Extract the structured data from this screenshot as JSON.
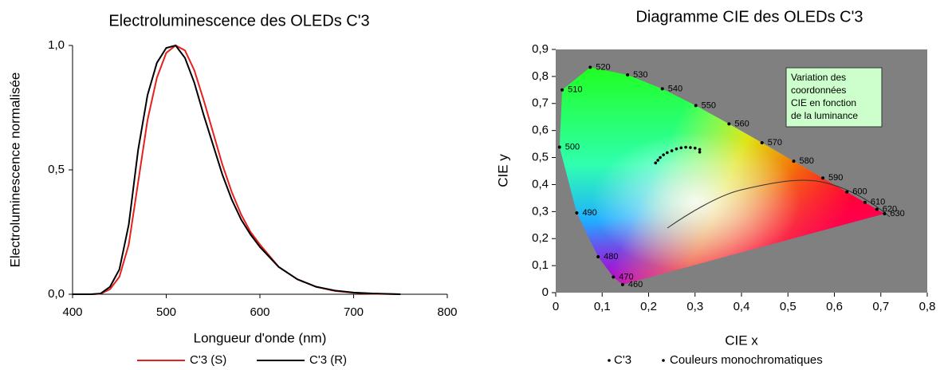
{
  "chart_data": [
    {
      "type": "line",
      "title": "Electroluminescence des OLEDs C'3",
      "x_label": "Longueur d'onde (nm)",
      "y_label": "Electroluminescence normalisée",
      "x": [
        400,
        420,
        430,
        440,
        450,
        460,
        470,
        480,
        490,
        500,
        510,
        520,
        530,
        540,
        550,
        560,
        570,
        580,
        590,
        600,
        620,
        640,
        660,
        680,
        700,
        720,
        750
      ],
      "series": [
        {
          "name": "C'3 (S)",
          "color": "#e8201c",
          "values": [
            0,
            0,
            0.002,
            0.02,
            0.07,
            0.2,
            0.45,
            0.7,
            0.87,
            0.97,
            1.0,
            0.98,
            0.9,
            0.78,
            0.65,
            0.52,
            0.41,
            0.32,
            0.25,
            0.2,
            0.11,
            0.06,
            0.03,
            0.013,
            0.006,
            0.002,
            0
          ]
        },
        {
          "name": "C'3 (R)",
          "color": "#000000",
          "values": [
            0,
            0,
            0.003,
            0.03,
            0.1,
            0.28,
            0.58,
            0.8,
            0.93,
            0.99,
            1.0,
            0.95,
            0.85,
            0.72,
            0.6,
            0.48,
            0.38,
            0.3,
            0.24,
            0.19,
            0.11,
            0.06,
            0.03,
            0.015,
            0.007,
            0.003,
            0
          ]
        }
      ],
      "xlim": [
        400,
        800
      ],
      "xticks": [
        400,
        500,
        600,
        700,
        800
      ],
      "ylim": [
        0,
        1
      ],
      "yticks": [
        {
          "value": 0,
          "label": "0,0"
        },
        {
          "value": 0.5,
          "label": "0,5"
        },
        {
          "value": 1,
          "label": "1,0"
        }
      ],
      "grid": false
    },
    {
      "type": "scatter",
      "title": "Diagramme CIE des OLEDs C'3",
      "x_label": "CIE x",
      "y_label": "CIE y",
      "annotation": [
        "Variation des",
        "coordonnées",
        "CIE en fonction",
        "de la luminance"
      ],
      "background": "#808080",
      "series": [
        {
          "name": "C'3",
          "color": "#000000",
          "x": [
            0.215,
            0.22,
            0.225,
            0.232,
            0.24,
            0.25,
            0.26,
            0.27,
            0.28,
            0.29,
            0.3,
            0.31,
            0.31
          ],
          "values": [
            0.48,
            0.49,
            0.5,
            0.51,
            0.518,
            0.525,
            0.532,
            0.536,
            0.538,
            0.537,
            0.535,
            0.53,
            0.52
          ]
        },
        {
          "name": "Couleurs monochromatiques",
          "color": "#000000",
          "x": [
            0.144,
            0.1241,
            0.0913,
            0.0454,
            0.0082,
            0.0139,
            0.0743,
            0.1547,
            0.2296,
            0.3016,
            0.3731,
            0.4441,
            0.5125,
            0.5752,
            0.627,
            0.6658,
            0.6915,
            0.7079
          ],
          "values": [
            0.0297,
            0.0578,
            0.1327,
            0.295,
            0.5384,
            0.7502,
            0.8338,
            0.8059,
            0.7543,
            0.6923,
            0.6245,
            0.5547,
            0.4866,
            0.4242,
            0.3725,
            0.334,
            0.3083,
            0.292
          ],
          "labels": [
            "460",
            "470",
            "480",
            "490",
            "500",
            "510",
            "520",
            "530",
            "540",
            "550",
            "560",
            "570",
            "580",
            "590",
            "600",
            "610",
            "620",
            "630"
          ]
        }
      ],
      "xlim": [
        0,
        0.8
      ],
      "xticks": [
        0,
        {
          "value": 0.1,
          "label": "0,1"
        },
        {
          "value": 0.2,
          "label": "0,2"
        },
        {
          "value": 0.3,
          "label": "0,3"
        },
        {
          "value": 0.4,
          "label": "0,4"
        },
        {
          "value": 0.5,
          "label": "0,5"
        },
        {
          "value": 0.6,
          "label": "0,6"
        },
        {
          "value": 0.7,
          "label": "0,7"
        },
        {
          "value": 0.8,
          "label": "0,8"
        }
      ],
      "ylim": [
        0,
        0.9
      ],
      "yticks": [
        0,
        {
          "value": 0.1,
          "label": "0,1"
        },
        {
          "value": 0.2,
          "label": "0,2"
        },
        {
          "value": 0.3,
          "label": "0,3"
        },
        {
          "value": 0.4,
          "label": "0,4"
        },
        {
          "value": 0.5,
          "label": "0,5"
        },
        {
          "value": 0.6,
          "label": "0,6"
        },
        {
          "value": 0.7,
          "label": "0,7"
        },
        {
          "value": 0.8,
          "label": "0,8"
        },
        {
          "value": 0.9,
          "label": "0,9"
        }
      ],
      "grid": false
    }
  ]
}
